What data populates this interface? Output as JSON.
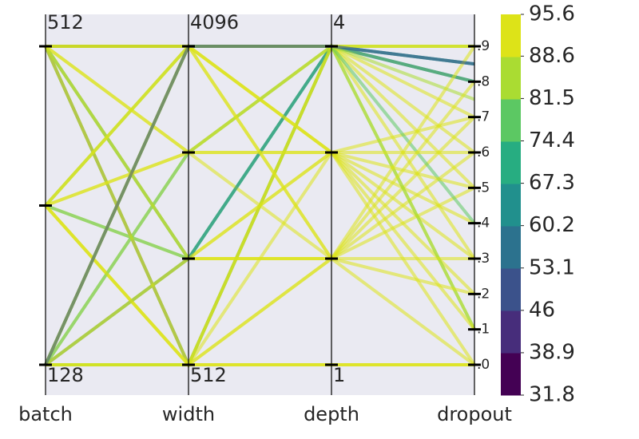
{
  "chart_data": {
    "type": "parallel",
    "dimensions": [
      {
        "name": "batch",
        "log": true,
        "lim": [
          128,
          512
        ],
        "ticks": [
          128,
          {
            "value": 256,
            "label": null
          },
          512
        ]
      },
      {
        "name": "width",
        "log": true,
        "lim": [
          512,
          4096
        ],
        "ticks": [
          512,
          {
            "value": 1024,
            "label": null
          },
          {
            "value": 2048,
            "label": null
          },
          4096
        ]
      },
      {
        "name": "depth",
        "log": false,
        "lim": [
          1,
          4
        ],
        "ticks": [
          1,
          {
            "value": 2,
            "label": null
          },
          {
            "value": 3,
            "label": null
          },
          4
        ]
      },
      {
        "name": "dropout",
        "log": false,
        "lim": [
          0,
          0.9
        ],
        "ticks": [
          {
            "value": 0,
            "label": ".0"
          },
          {
            "value": 0.1,
            "label": ".1"
          },
          {
            "value": 0.2,
            "label": ".2"
          },
          {
            "value": 0.3,
            "label": ".3"
          },
          {
            "value": 0.4,
            "label": ".4"
          },
          {
            "value": 0.5,
            "label": ".5"
          },
          {
            "value": 0.6,
            "label": ".6"
          },
          {
            "value": 0.7,
            "label": ".7"
          },
          {
            "value": 0.8,
            "label": ".8"
          },
          {
            "value": 0.9,
            "label": ".9"
          }
        ]
      }
    ],
    "colorbar": {
      "lim": [
        31.8,
        95.6
      ],
      "ticks": [
        31.8,
        38.9,
        46.0,
        53.1,
        60.2,
        67.3,
        74.4,
        81.5,
        88.6,
        95.6
      ],
      "colors": [
        "#440154",
        "#472d7b",
        "#3b528b",
        "#2c728e",
        "#21908d",
        "#27ad81",
        "#5cc863",
        "#aadc32",
        "#dde318"
      ]
    },
    "lines": [
      {
        "values": [
          512,
          4096,
          4,
          0.9
        ],
        "score": 93
      },
      {
        "values": [
          512,
          4096,
          4,
          0.5
        ],
        "score": 94
      },
      {
        "values": [
          512,
          2048,
          3,
          0.3
        ],
        "score": 92
      },
      {
        "values": [
          512,
          512,
          1,
          0.0
        ],
        "score": 93
      },
      {
        "values": [
          512,
          1024,
          2,
          0.7
        ],
        "score": 95
      },
      {
        "values": [
          512,
          4096,
          4,
          0.8
        ],
        "score": 60
      },
      {
        "values": [
          512,
          512,
          4,
          0.8
        ],
        "score": 55
      },
      {
        "values": [
          512,
          1024,
          4,
          0.85
        ],
        "score": 70
      },
      {
        "values": [
          256,
          4096,
          3,
          0.2
        ],
        "score": 92
      },
      {
        "values": [
          256,
          2048,
          4,
          0.6
        ],
        "score": 93
      },
      {
        "values": [
          256,
          1024,
          2,
          0.0
        ],
        "score": 94
      },
      {
        "values": [
          256,
          512,
          3,
          0.4
        ],
        "score": 91
      },
      {
        "values": [
          256,
          4096,
          4,
          0.1
        ],
        "score": 85
      },
      {
        "values": [
          256,
          1024,
          4,
          0.8
        ],
        "score": 75
      },
      {
        "values": [
          256,
          512,
          1,
          0.0
        ],
        "score": 94
      },
      {
        "values": [
          128,
          4096,
          4,
          0.9
        ],
        "score": 88
      },
      {
        "values": [
          128,
          2048,
          2,
          0.5
        ],
        "score": 93
      },
      {
        "values": [
          128,
          1024,
          3,
          0.7
        ],
        "score": 92
      },
      {
        "values": [
          128,
          512,
          4,
          0.3
        ],
        "score": 90
      },
      {
        "values": [
          128,
          512,
          2,
          0.6
        ],
        "score": 94
      },
      {
        "values": [
          128,
          4096,
          3,
          0.0
        ],
        "score": 92
      },
      {
        "values": [
          128,
          1024,
          4,
          0.85
        ],
        "score": 65
      },
      {
        "values": [
          128,
          512,
          4,
          0.1
        ],
        "score": 87
      },
      {
        "values": [
          128,
          2048,
          4,
          0.4
        ],
        "score": 80
      },
      {
        "values": [
          512,
          4096,
          2,
          0.2
        ],
        "score": 93
      },
      {
        "values": [
          512,
          2048,
          4,
          0.9
        ],
        "score": 92
      },
      {
        "values": [
          256,
          512,
          4,
          0.7
        ],
        "score": 90
      },
      {
        "values": [
          128,
          512,
          1,
          0.0
        ],
        "score": 95
      },
      {
        "values": [
          512,
          4096,
          3,
          0.6
        ],
        "score": 94
      },
      {
        "values": [
          128,
          4096,
          4,
          0.75
        ],
        "score": 86
      },
      {
        "values": [
          256,
          2048,
          3,
          0.1
        ],
        "score": 93
      },
      {
        "values": [
          512,
          1024,
          3,
          0.5
        ],
        "score": 92
      },
      {
        "values": [
          128,
          1024,
          2,
          0.3
        ],
        "score": 93
      },
      {
        "values": [
          256,
          4096,
          2,
          0.8
        ],
        "score": 94
      },
      {
        "values": [
          512,
          512,
          2,
          0.9
        ],
        "score": 92
      },
      {
        "values": [
          128,
          4096,
          4,
          0.85
        ],
        "score": 50
      }
    ]
  }
}
